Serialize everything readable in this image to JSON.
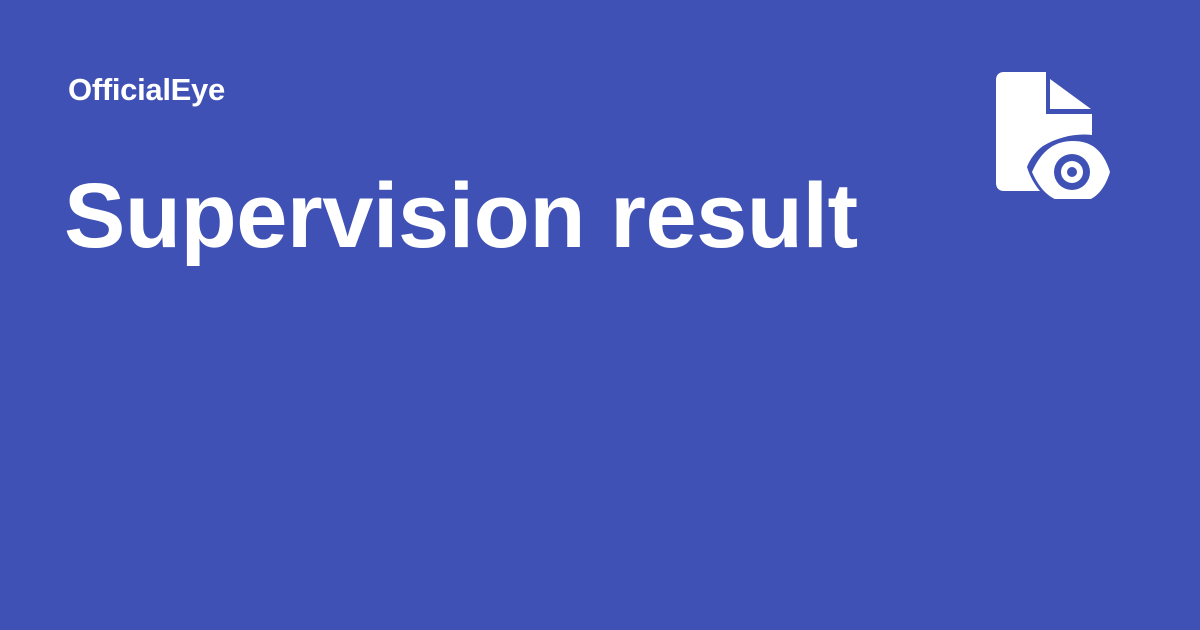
{
  "card": {
    "background_color": "#3f51b5",
    "text_color": "#ffffff",
    "brand": "OfficialEye",
    "title": "Supervision result",
    "logo_icon": "document-eye-icon"
  }
}
